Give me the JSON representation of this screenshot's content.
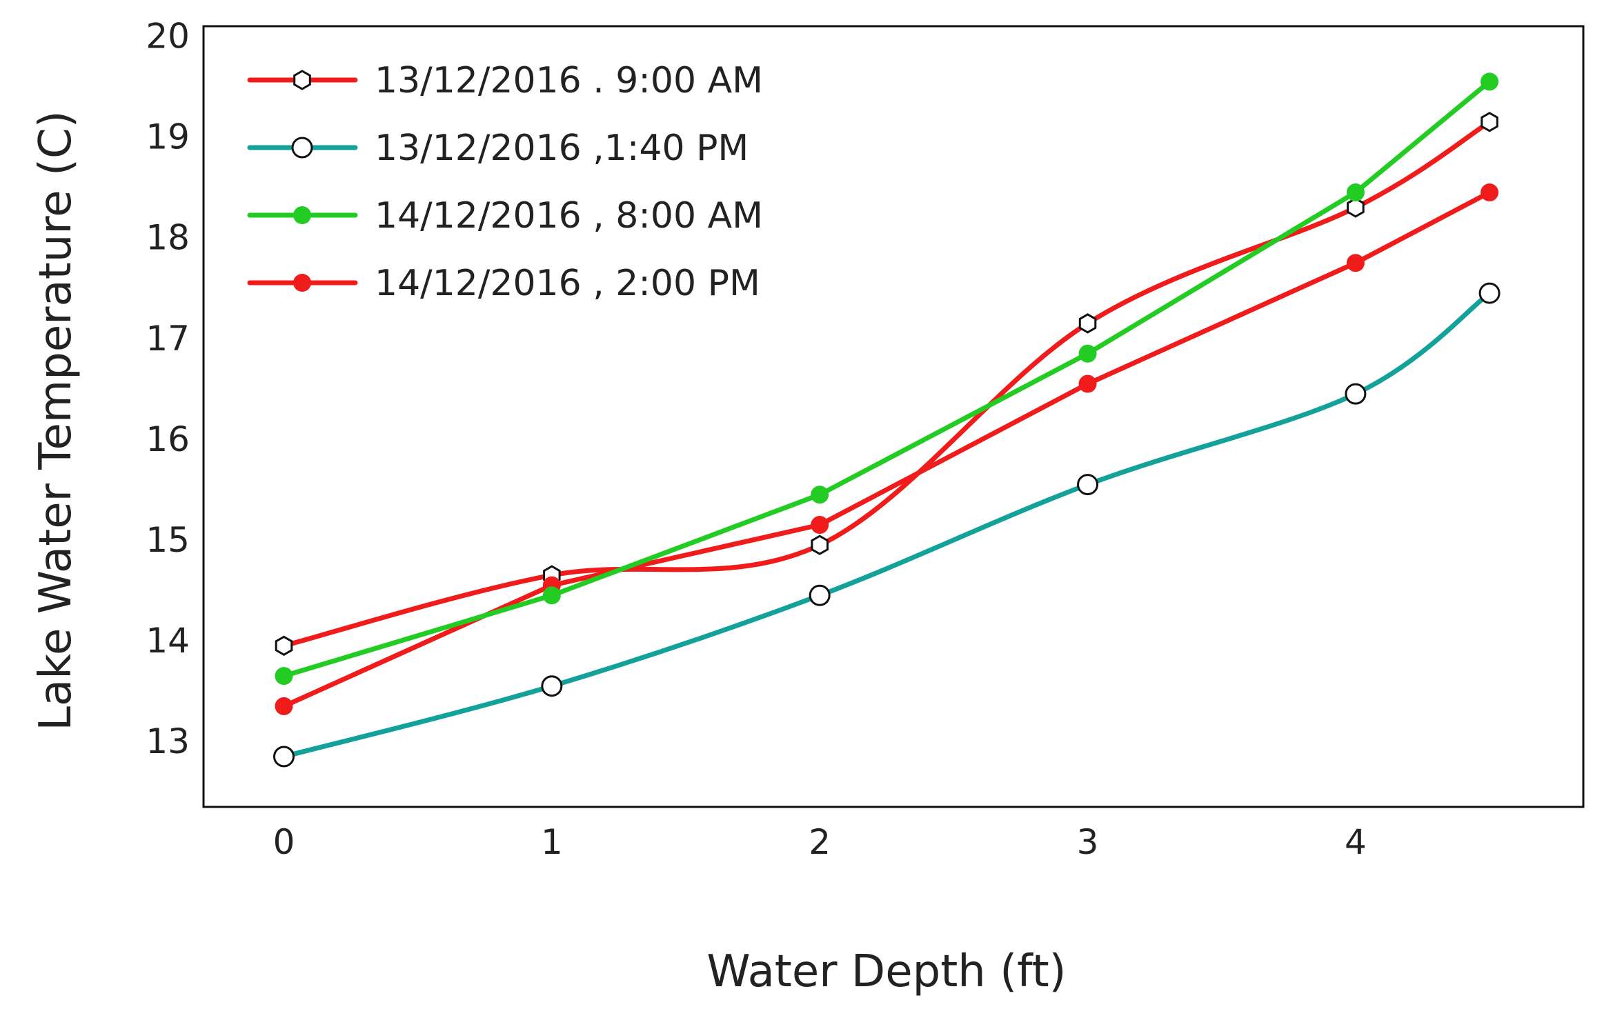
{
  "chart_data": {
    "type": "line",
    "title": "",
    "xlabel": "Water Depth (ft)",
    "ylabel": "Lake Water Temperature (C)",
    "xlim": [
      -0.3,
      4.85
    ],
    "ylim": [
      12.35,
      20.1
    ],
    "x_ticks": [
      0,
      1,
      2,
      3,
      4
    ],
    "y_ticks": [
      13,
      14,
      15,
      16,
      17,
      18,
      19,
      20
    ],
    "x": [
      0,
      1,
      2,
      3,
      4,
      4.5
    ],
    "grid": false,
    "legend_position": "top-left",
    "series": [
      {
        "name": "13/12/2016 . 9:00 AM",
        "color": "#f01c1c",
        "marker": "hexagon-open",
        "smooth": true,
        "values": [
          13.95,
          14.65,
          14.95,
          17.15,
          18.3,
          19.15
        ]
      },
      {
        "name": "13/12/2016 ,1:40 PM",
        "color": "#13a29a",
        "marker": "circle-open",
        "smooth": true,
        "values": [
          12.85,
          13.55,
          14.45,
          15.55,
          16.45,
          17.45
        ]
      },
      {
        "name": "14/12/2016 , 8:00 AM",
        "color": "#22cc22",
        "marker": "circle-filled",
        "smooth": false,
        "values": [
          13.65,
          14.45,
          15.45,
          16.85,
          18.45,
          19.55
        ]
      },
      {
        "name": "14/12/2016 , 2:00 PM",
        "color": "#f01c1c",
        "marker": "circle-filled",
        "smooth": false,
        "values": [
          13.35,
          14.55,
          15.15,
          16.55,
          17.75,
          18.45
        ]
      }
    ]
  }
}
